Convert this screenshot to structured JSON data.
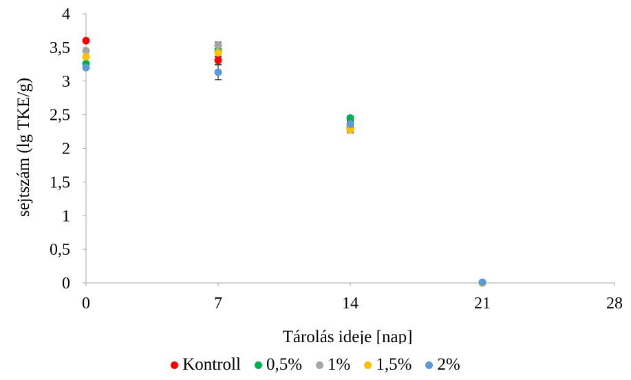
{
  "chart_data": {
    "type": "scatter",
    "xlabel": "Tárolás ideje [nap]",
    "ylabel": "sejtszám (lg TKE/g)",
    "xlim": [
      0,
      28
    ],
    "ylim": [
      0,
      4
    ],
    "xticks": [
      0,
      7,
      14,
      21,
      28
    ],
    "xtick_labels": [
      "0",
      "7",
      "14",
      "21",
      "28"
    ],
    "yticks": [
      0,
      0.5,
      1,
      1.5,
      2,
      2.5,
      3,
      3.5,
      4
    ],
    "ytick_labels": [
      "0",
      "0,5",
      "1",
      "1,5",
      "2",
      "2,5",
      "3",
      "3,5",
      "4"
    ],
    "grid": false,
    "legend_position": "bottom",
    "series": [
      {
        "name": "Kontroll",
        "color": "#ff0000",
        "x": [
          0,
          7,
          14,
          21
        ],
        "y": [
          3.6,
          3.31,
          2.3,
          0
        ],
        "err": [
          0,
          0.06,
          0.05,
          0
        ]
      },
      {
        "name": "0,5%",
        "color": "#00b050",
        "x": [
          0,
          7,
          14,
          21
        ],
        "y": [
          3.26,
          3.45,
          2.45,
          0
        ],
        "err": [
          0,
          0.08,
          0.03,
          0
        ]
      },
      {
        "name": "1%",
        "color": "#a6a6a6",
        "x": [
          0,
          7,
          14,
          21
        ],
        "y": [
          3.45,
          3.53,
          2.36,
          0
        ],
        "err": [
          0,
          0.05,
          0.04,
          0
        ]
      },
      {
        "name": "1,5%",
        "color": "#ffc000",
        "x": [
          0,
          7,
          14,
          21
        ],
        "y": [
          3.36,
          3.42,
          2.28,
          0
        ],
        "err": [
          0,
          0.06,
          0.05,
          0
        ]
      },
      {
        "name": "2%",
        "color": "#5b9bd5",
        "x": [
          0,
          7,
          14,
          21
        ],
        "y": [
          3.2,
          3.13,
          2.36,
          0.01
        ],
        "err": [
          0,
          0.11,
          0.05,
          0
        ]
      }
    ]
  }
}
